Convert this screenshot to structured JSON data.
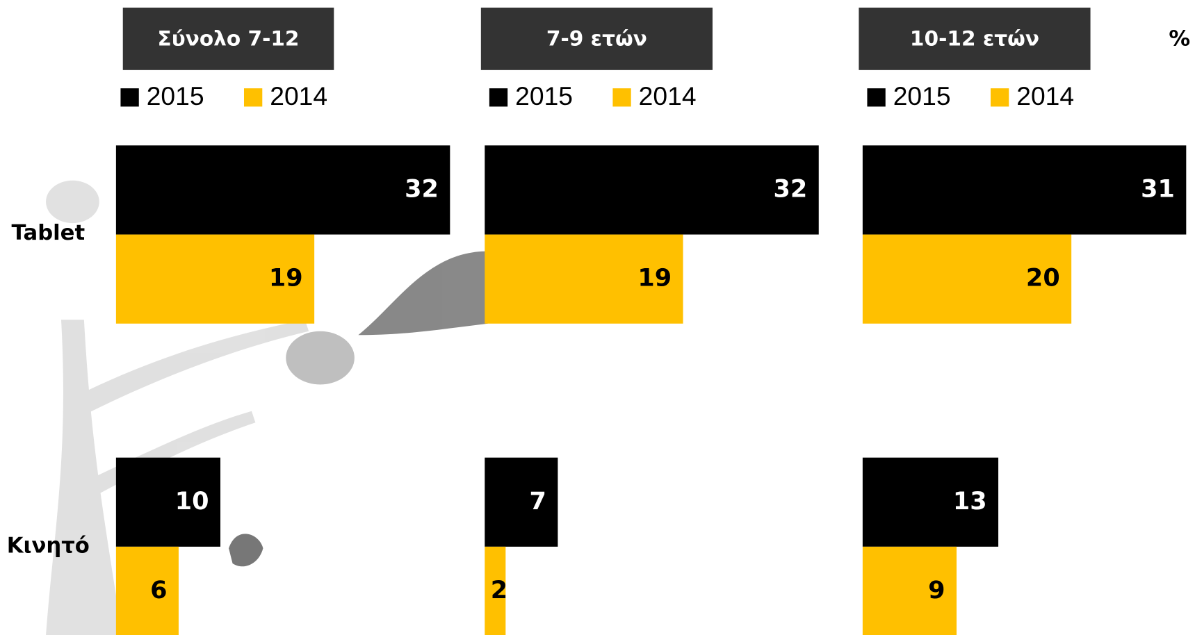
{
  "chart_data": {
    "type": "bar",
    "unit": "%",
    "categories": [
      "Tablet",
      "Κινητό"
    ],
    "panels": [
      {
        "title": "Σύνολο 7-12",
        "series": [
          {
            "name": "2015",
            "color": "#000000",
            "values": [
              32,
              10
            ]
          },
          {
            "name": "2014",
            "color": "#FFC000",
            "values": [
              19,
              6
            ]
          }
        ]
      },
      {
        "title": "7-9 ετών",
        "series": [
          {
            "name": "2015",
            "color": "#000000",
            "values": [
              32,
              7
            ]
          },
          {
            "name": "2014",
            "color": "#FFC000",
            "values": [
              19,
              2
            ]
          }
        ]
      },
      {
        "title": "10-12 ετών",
        "series": [
          {
            "name": "2015",
            "color": "#000000",
            "values": [
              31,
              13
            ]
          },
          {
            "name": "2014",
            "color": "#FFC000",
            "values": [
              20,
              9
            ]
          }
        ]
      }
    ]
  }
}
